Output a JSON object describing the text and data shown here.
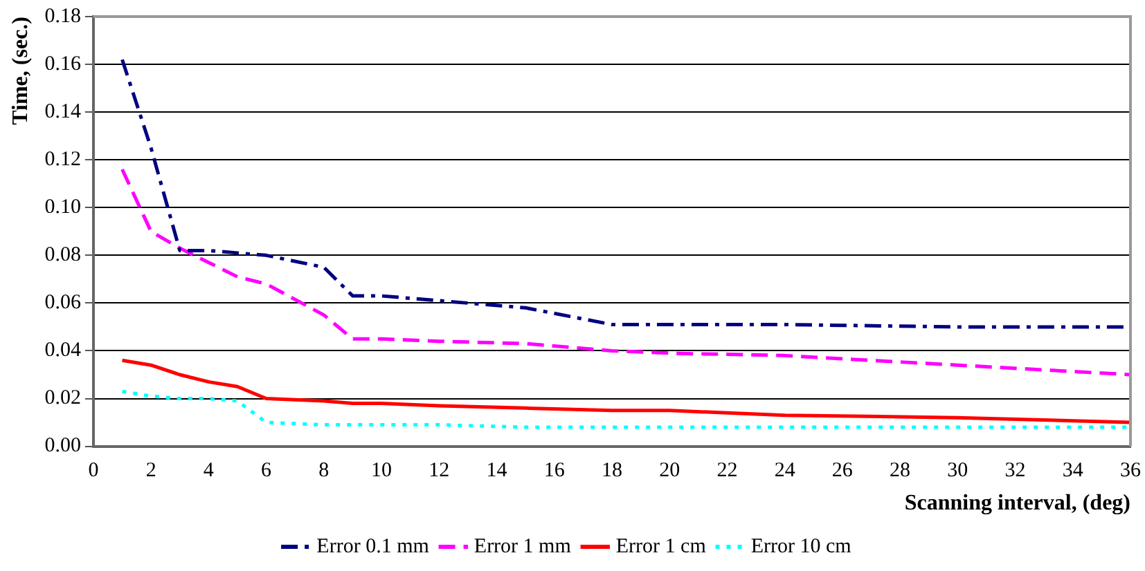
{
  "chart_data": {
    "type": "line",
    "xlabel": "Scanning interval, (deg)",
    "ylabel": "Time, (sec.)",
    "x": [
      1,
      2,
      3,
      4,
      5,
      6,
      8,
      9,
      10,
      12,
      15,
      18,
      20,
      24,
      30,
      36
    ],
    "series": [
      {
        "name": "Error 0.1 mm",
        "color": "#000080",
        "line_style": "dashdot",
        "values": [
          0.162,
          0.125,
          0.082,
          0.082,
          0.081,
          0.08,
          0.075,
          0.063,
          0.063,
          0.061,
          0.058,
          0.051,
          0.051,
          0.051,
          0.05,
          0.05
        ]
      },
      {
        "name": "Error 1 mm",
        "color": "#ff00ff",
        "line_style": "dashed",
        "values": [
          0.116,
          0.09,
          0.083,
          0.077,
          0.071,
          0.068,
          0.055,
          0.045,
          0.045,
          0.044,
          0.043,
          0.04,
          0.039,
          0.038,
          0.034,
          0.03
        ]
      },
      {
        "name": "Error 1 cm",
        "color": "#ff0000",
        "line_style": "solid",
        "values": [
          0.036,
          0.034,
          0.03,
          0.027,
          0.025,
          0.02,
          0.019,
          0.018,
          0.018,
          0.017,
          0.016,
          0.015,
          0.015,
          0.013,
          0.012,
          0.01
        ]
      },
      {
        "name": "Error 10 cm",
        "color": "#00ffff",
        "line_style": "dotted",
        "values": [
          0.023,
          0.021,
          0.02,
          0.02,
          0.019,
          0.01,
          0.009,
          0.009,
          0.009,
          0.009,
          0.008,
          0.008,
          0.008,
          0.008,
          0.008,
          0.008
        ]
      }
    ],
    "xlim": [
      0,
      36
    ],
    "xticks": [
      0,
      2,
      4,
      6,
      8,
      10,
      12,
      14,
      16,
      18,
      20,
      22,
      24,
      26,
      28,
      30,
      32,
      34,
      36
    ],
    "ylim": [
      0,
      0.18
    ],
    "yticks": [
      {
        "value": 0,
        "label": "0.00"
      },
      {
        "value": 0.02,
        "label": "0.02"
      },
      {
        "value": 0.04,
        "label": "0.04"
      },
      {
        "value": 0.06,
        "label": "0.06"
      },
      {
        "value": 0.08,
        "label": "0.08"
      },
      {
        "value": 0.1,
        "label": "0.10"
      },
      {
        "value": 0.12,
        "label": "0.12"
      },
      {
        "value": 0.14,
        "label": "0.14"
      },
      {
        "value": 0.16,
        "label": "0.16"
      },
      {
        "value": 0.18,
        "label": "0.18"
      }
    ],
    "grid": "y",
    "legend": "bottom",
    "marker": "none"
  }
}
